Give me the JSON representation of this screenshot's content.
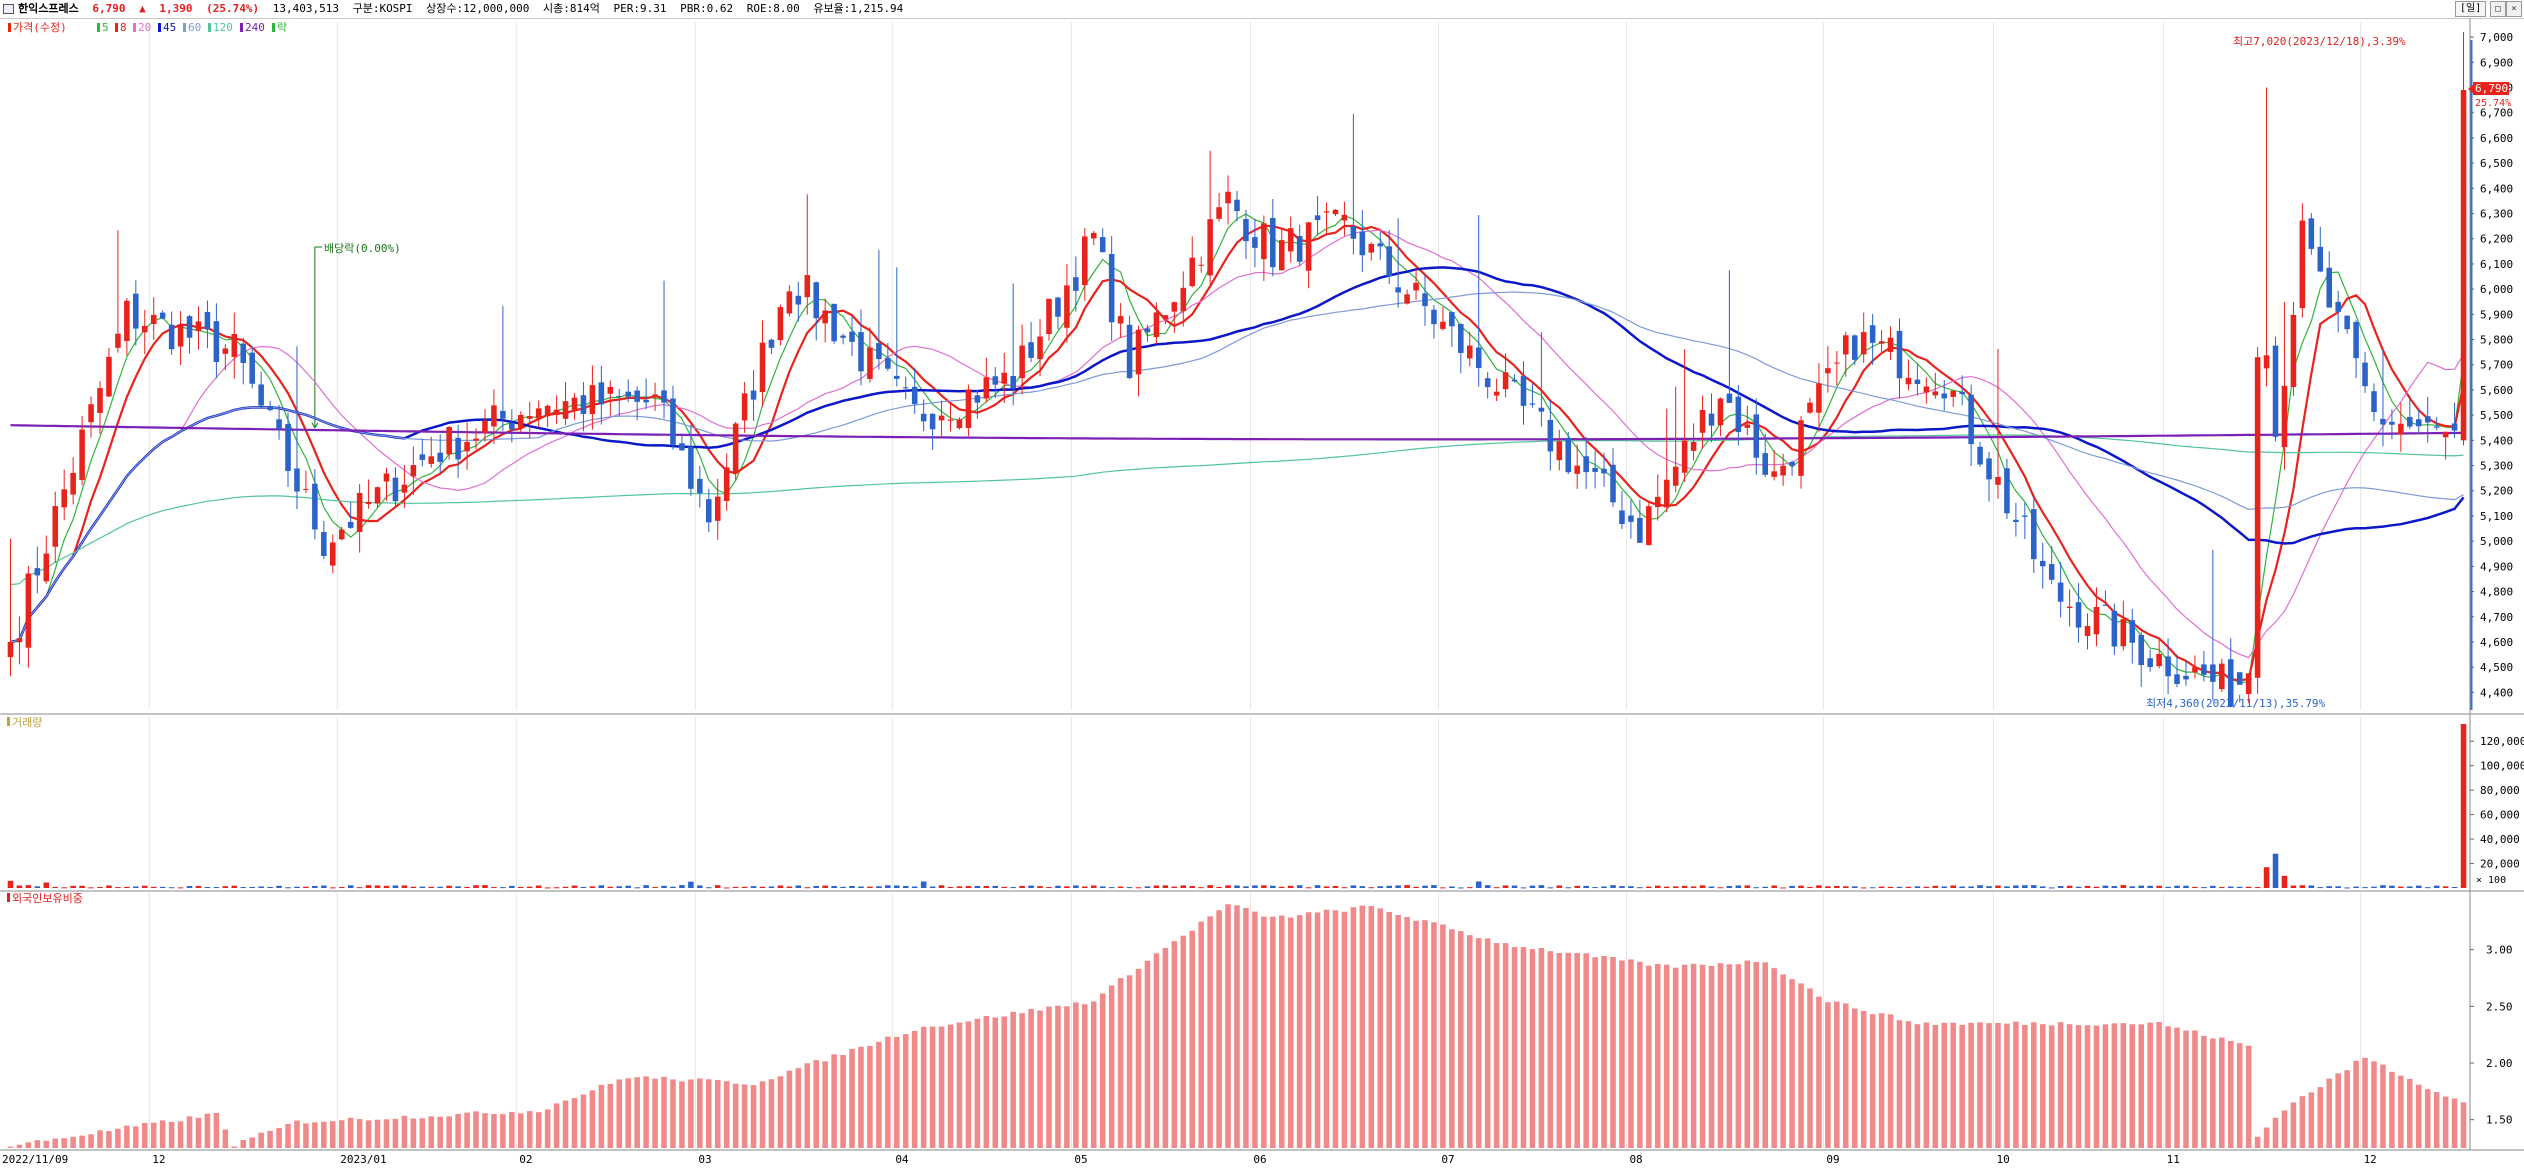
{
  "header": {
    "name": "한익스프레스",
    "price": "6,790",
    "arrow": "▲",
    "change": "1,390",
    "change_pct": "(25.74%)",
    "volume": "13,403,513",
    "market": "구분:KOSPI",
    "shares": "상장수:12,000,000",
    "mcap": "시총:814억",
    "per": "PER:9.31",
    "pbr": "PBR:0.62",
    "roe": "ROE:8.00",
    "reserve": "유보율:1,215.94",
    "period_button": "[일]"
  },
  "colors": {
    "up": "#e8231b",
    "down": "#2b63c9",
    "ma5": "#31b53c",
    "ma10": "#e8231b",
    "ma20": "#e070d0",
    "ma45": "#0b18c8",
    "ma60": "#7e9bd8",
    "ma120": "#52c49a",
    "ma240": "#7b1fb5",
    "foreign": "#f08a8a"
  },
  "price_panel": {
    "legend": [
      {
        "label": "가격(수정)",
        "color": "#e8231b"
      },
      {
        "label": "5",
        "color": "#31b53c"
      },
      {
        "label": "8",
        "color": "#e8231b"
      },
      {
        "label": "20",
        "color": "#e070d0"
      },
      {
        "label": "45",
        "color": "#0b18c8"
      },
      {
        "label": "60",
        "color": "#7e9bd8"
      },
      {
        "label": "120",
        "color": "#52c49a"
      },
      {
        "label": "240",
        "color": "#7b1fb5"
      },
      {
        "label": "락",
        "color": "#31b53c"
      }
    ],
    "dividend_marker": "배당락(0.00%)",
    "high_annotation": "최고7,020(2023/12/18),3.39%",
    "low_annotation": "최저4,360(2023/11/13),35.79%",
    "current_price_tag": "6,790",
    "current_pct_tag": "25.74%",
    "y_ticks": [
      "7,000",
      "6,900",
      "6,800",
      "6,700",
      "6,600",
      "6,500",
      "6,400",
      "6,300",
      "6,200",
      "6,100",
      "6,000",
      "5,900",
      "5,800",
      "5,700",
      "5,600",
      "5,500",
      "5,400",
      "5,300",
      "5,200",
      "5,100",
      "5,000",
      "4,900",
      "4,800",
      "4,700",
      "4,600",
      "4,500",
      "4,400"
    ]
  },
  "volume_panel": {
    "legend": "거래량",
    "y_ticks": [
      "120,000",
      "100,000",
      "80,000",
      "60,000",
      "40,000",
      "20,000"
    ],
    "unit": "× 100"
  },
  "foreign_panel": {
    "legend": "외국인보유비중",
    "y_ticks": [
      "3.00",
      "2.50",
      "2.00",
      "1.50"
    ]
  },
  "x_axis": [
    "2022/11/09",
    "12",
    "2023/01",
    "02",
    "03",
    "04",
    "05",
    "06",
    "07",
    "08",
    "09",
    "10",
    "11",
    "12"
  ],
  "chart_data": [
    {
      "type": "candlestick",
      "title": "",
      "x_range": [
        "2022/11/09",
        "2023/12/18"
      ],
      "ylim": [
        4360,
        7050
      ],
      "anchors": [
        {
          "date": "2022/11/09",
          "close": 4600
        },
        {
          "date": "2022/11/28",
          "close": 5900
        },
        {
          "date": "2022/12/14",
          "close": 5750
        },
        {
          "date": "2022/12/28",
          "close": 5000
        },
        {
          "date": "2023/01/16",
          "close": 5350
        },
        {
          "date": "2023/02/03",
          "close": 5550
        },
        {
          "date": "2023/02/22",
          "close": 5550
        },
        {
          "date": "2023/03/03",
          "close": 5100
        },
        {
          "date": "2023/03/16",
          "close": 6050
        },
        {
          "date": "2023/04/05",
          "close": 5500
        },
        {
          "date": "2023/04/20",
          "close": 5650
        },
        {
          "date": "2023/05/04",
          "close": 6200
        },
        {
          "date": "2023/05/11",
          "close": 5700
        },
        {
          "date": "2023/05/26",
          "close": 6350
        },
        {
          "date": "2023/06/05",
          "close": 6150
        },
        {
          "date": "2023/06/16",
          "close": 6250
        },
        {
          "date": "2023/07/03",
          "close": 5850
        },
        {
          "date": "2023/07/13",
          "close": 5550
        },
        {
          "date": "2023/08/02",
          "close": 5050
        },
        {
          "date": "2023/08/16",
          "close": 5600
        },
        {
          "date": "2023/08/24",
          "close": 5250
        },
        {
          "date": "2023/09/06",
          "close": 5800
        },
        {
          "date": "2023/09/20",
          "close": 5650
        },
        {
          "date": "2023/10/13",
          "close": 4800
        },
        {
          "date": "2023/10/30",
          "close": 4550
        },
        {
          "date": "2023/11/13",
          "close": 4400
        },
        {
          "date": "2023/11/22",
          "close": 6200
        },
        {
          "date": "2023/12/04",
          "close": 5500
        },
        {
          "date": "2023/12/15",
          "close": 5400
        },
        {
          "date": "2023/12/18",
          "close": 6790
        }
      ],
      "series": [
        {
          "name": "5"
        },
        {
          "name": "8"
        },
        {
          "name": "20"
        },
        {
          "name": "45"
        },
        {
          "name": "60"
        },
        {
          "name": "120"
        },
        {
          "name": "240"
        }
      ]
    },
    {
      "type": "bar",
      "title": "거래량",
      "unit": "× 100",
      "ylim": [
        0,
        130000
      ],
      "spikes": [
        {
          "date": "2023/11/16",
          "value": 17000
        },
        {
          "date": "2023/11/17",
          "value": 28000
        },
        {
          "date": "2023/11/20",
          "value": 10000
        },
        {
          "date": "2023/12/18",
          "value": 134035
        }
      ],
      "baseline": 1500
    },
    {
      "type": "bar",
      "title": "외국인보유비중",
      "ylim": [
        1.25,
        3.5
      ],
      "anchors": [
        {
          "date": "2022/11/09",
          "value": 1.27
        },
        {
          "date": "2022/12/12",
          "value": 1.55
        },
        {
          "date": "2022/12/14",
          "value": 1.28
        },
        {
          "date": "2022/12/23",
          "value": 1.48
        },
        {
          "date": "2023/02/03",
          "value": 1.58
        },
        {
          "date": "2023/02/17",
          "value": 1.88
        },
        {
          "date": "2023/03/10",
          "value": 1.82
        },
        {
          "date": "2023/04/05",
          "value": 2.3
        },
        {
          "date": "2023/05/04",
          "value": 2.55
        },
        {
          "date": "2023/05/12",
          "value": 2.85
        },
        {
          "date": "2023/05/26",
          "value": 3.4
        },
        {
          "date": "2023/06/05",
          "value": 3.28
        },
        {
          "date": "2023/06/21",
          "value": 3.38
        },
        {
          "date": "2023/07/12",
          "value": 3.05
        },
        {
          "date": "2023/08/07",
          "value": 2.85
        },
        {
          "date": "2023/08/23",
          "value": 2.9
        },
        {
          "date": "2023/09/01",
          "value": 2.55
        },
        {
          "date": "2023/09/15",
          "value": 2.35
        },
        {
          "date": "2023/10/31",
          "value": 2.35
        },
        {
          "date": "2023/11/14",
          "value": 2.15
        },
        {
          "date": "2023/11/15",
          "value": 1.35
        },
        {
          "date": "2023/11/20",
          "value": 1.6
        },
        {
          "date": "2023/12/01",
          "value": 2.05
        },
        {
          "date": "2023/12/13",
          "value": 1.75
        },
        {
          "date": "2023/12/18",
          "value": 1.65
        }
      ]
    }
  ]
}
